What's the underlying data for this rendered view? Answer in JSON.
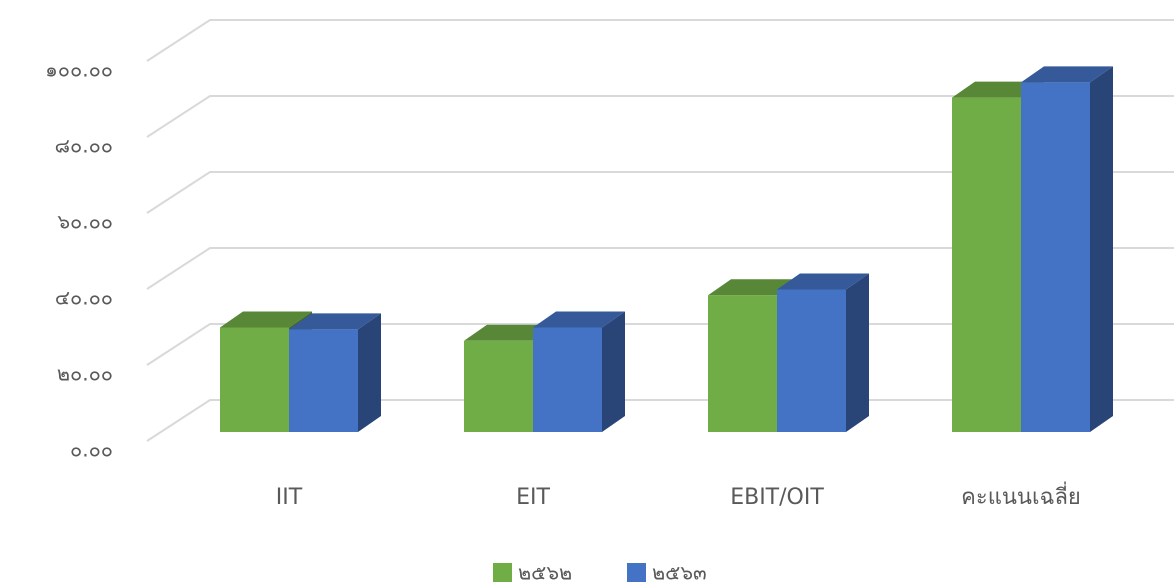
{
  "chart_data": {
    "type": "bar3d",
    "categories": [
      "IIT",
      "EIT",
      "EBIT/OIT",
      "คะแนนเฉลี่ย"
    ],
    "series": [
      {
        "name": "๒๕๖๒",
        "color": "#70ad47",
        "values": [
          27.5,
          24,
          36,
          88
        ]
      },
      {
        "name": "๒๕๖๓",
        "color": "#4472c4",
        "values": [
          27,
          27.5,
          37.5,
          92
        ]
      }
    ],
    "ylim": [
      0,
      100
    ],
    "yticks": [
      {
        "value": 0,
        "label": "๐.๐๐"
      },
      {
        "value": 20,
        "label": "๒๐.๐๐"
      },
      {
        "value": 40,
        "label": "๔๐.๐๐"
      },
      {
        "value": 60,
        "label": "๖๐.๐๐"
      },
      {
        "value": 80,
        "label": "๘๐.๐๐"
      },
      {
        "value": 100,
        "label": "๑๐๐.๐๐"
      }
    ],
    "grid": true,
    "legend": "bottom"
  }
}
